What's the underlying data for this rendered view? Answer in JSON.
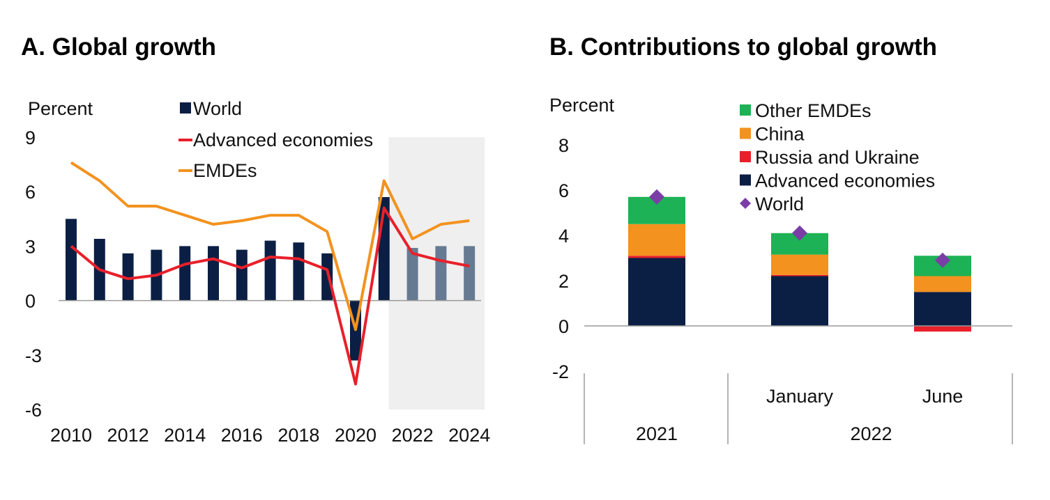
{
  "colors": {
    "navy": "#0b1f44",
    "projection_bar": "#667a92",
    "red": "#e8202a",
    "orange": "#f3921e",
    "green": "#1db255",
    "purple": "#7a3ea6",
    "shade": "#efefef",
    "axis": "#9a9a9a"
  },
  "chart_data": [
    {
      "panel": "A",
      "type": "bar",
      "title": "A. Global growth",
      "ylabel": "Percent",
      "xlabel": "",
      "ylim": [
        -6,
        9
      ],
      "yticks": [
        "9",
        "6",
        "3",
        "0",
        "-3",
        "-6"
      ],
      "x_tick_labels": [
        "2010",
        "2012",
        "2014",
        "2016",
        "2018",
        "2020",
        "2022",
        "2024"
      ],
      "x": [
        2010,
        2011,
        2012,
        2013,
        2014,
        2015,
        2016,
        2017,
        2018,
        2019,
        2020,
        2021,
        2022,
        2023,
        2024
      ],
      "forecast_shading": [
        2022,
        2024
      ],
      "series": [
        {
          "name": "World",
          "kind": "bar",
          "values": [
            4.5,
            3.4,
            2.6,
            2.8,
            3.0,
            3.0,
            2.8,
            3.3,
            3.2,
            2.6,
            -3.3,
            5.7,
            2.9,
            3.0,
            3.0
          ]
        },
        {
          "name": "Advanced economies",
          "kind": "line",
          "values": [
            3.0,
            1.7,
            1.2,
            1.4,
            2.0,
            2.3,
            1.8,
            2.4,
            2.3,
            1.7,
            -4.6,
            5.1,
            2.6,
            2.2,
            1.9
          ]
        },
        {
          "name": "EMDEs",
          "kind": "line",
          "values": [
            7.6,
            6.6,
            5.2,
            5.2,
            4.7,
            4.2,
            4.4,
            4.7,
            4.7,
            3.8,
            -1.6,
            6.6,
            3.4,
            4.2,
            4.4
          ]
        }
      ],
      "legend": [
        "World",
        "Advanced economies",
        "EMDEs"
      ]
    },
    {
      "panel": "B",
      "type": "bar",
      "stacked": true,
      "title": "B. Contributions to global growth",
      "ylabel": "Percent",
      "xlabel": "",
      "ylim": [
        -2,
        8
      ],
      "yticks": [
        "8",
        "6",
        "4",
        "2",
        "0",
        "-2"
      ],
      "categories": [
        "2021",
        "January",
        "June"
      ],
      "category_groups": [
        {
          "label": "2021",
          "members": [
            ""
          ]
        },
        {
          "label": "2022",
          "members": [
            "January",
            "June"
          ]
        }
      ],
      "series": [
        {
          "name": "Advanced economies",
          "values": [
            3.0,
            2.2,
            1.5
          ]
        },
        {
          "name": "Russia and Ukraine",
          "values": [
            0.1,
            0.05,
            -0.25
          ]
        },
        {
          "name": "China",
          "values": [
            1.4,
            0.9,
            0.7
          ]
        },
        {
          "name": "Other EMDEs",
          "values": [
            1.2,
            0.95,
            0.9
          ]
        },
        {
          "name": "World",
          "kind": "marker",
          "values": [
            5.7,
            4.1,
            2.9
          ]
        }
      ],
      "legend": [
        "Other EMDEs",
        "China",
        "Russia and Ukraine",
        "Advanced economies",
        "World"
      ]
    }
  ]
}
